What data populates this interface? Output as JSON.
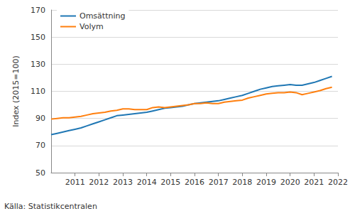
{
  "chart_data": {
    "type": "line",
    "y_label": "Index (2015=100)",
    "source": "Källa: Statistikcentralen",
    "x": [
      2010,
      2010.25,
      2010.5,
      2010.75,
      2011,
      2011.25,
      2011.5,
      2011.75,
      2012,
      2012.25,
      2012.5,
      2012.75,
      2013,
      2013.25,
      2013.5,
      2013.75,
      2014,
      2014.25,
      2014.5,
      2014.75,
      2015,
      2015.25,
      2015.5,
      2015.75,
      2016,
      2016.25,
      2016.5,
      2016.75,
      2017,
      2017.25,
      2017.5,
      2017.75,
      2018,
      2018.25,
      2018.5,
      2018.75,
      2019,
      2019.25,
      2019.5,
      2019.75,
      2020,
      2020.25,
      2020.5,
      2020.75,
      2021,
      2021.25,
      2021.5,
      2021.75
    ],
    "series": [
      {
        "name": "Omsättning",
        "color": "#1f77b4",
        "values": [
          78,
          79,
          80,
          81,
          82,
          83,
          84.5,
          86,
          87.5,
          89,
          90.5,
          92,
          92.5,
          93,
          93.5,
          94,
          94.5,
          95.5,
          96.5,
          97.5,
          98,
          98.5,
          99,
          100,
          101,
          101.5,
          102,
          102.5,
          103,
          104,
          105,
          106,
          107,
          108.5,
          110,
          111.5,
          112.5,
          113.5,
          114,
          114.5,
          115,
          114.5,
          114.5,
          115.5,
          116.5,
          118,
          119.5,
          121
        ]
      },
      {
        "name": "Volym",
        "color": "#ff7f0e",
        "values": [
          89.5,
          90,
          90.5,
          90.5,
          91,
          91.5,
          92.5,
          93.5,
          94,
          94.5,
          95.5,
          96,
          97,
          97,
          96.5,
          96.5,
          96.5,
          98,
          98.5,
          98,
          98.5,
          99,
          99.5,
          100,
          101,
          101,
          101.5,
          101,
          101,
          102,
          102.5,
          103,
          103.5,
          105,
          106,
          107,
          108,
          108.5,
          109,
          109,
          109.5,
          109,
          107.5,
          108.5,
          109.5,
          110.5,
          112,
          113
        ]
      }
    ],
    "xlim": [
      2010,
      2022
    ],
    "xticks": [
      2011,
      2012,
      2013,
      2014,
      2015,
      2016,
      2017,
      2018,
      2019,
      2020,
      2021,
      2022
    ],
    "ylim": [
      50,
      170
    ],
    "yticks": [
      50,
      70,
      90,
      110,
      130,
      150,
      170
    ],
    "grid": true,
    "legend": "upper left"
  }
}
